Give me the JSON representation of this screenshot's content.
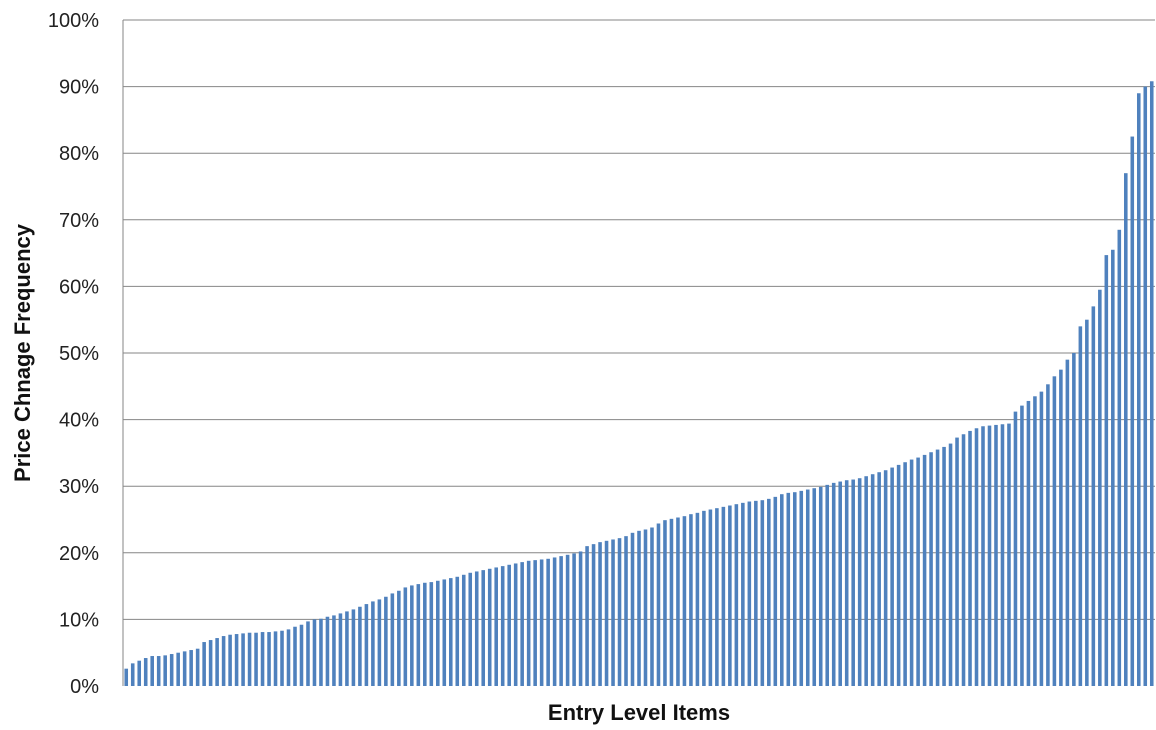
{
  "chart_data": {
    "type": "bar",
    "title": "",
    "xlabel": "Entry Level Items",
    "ylabel": "Price Chnage Frequency",
    "ylim": [
      0,
      100
    ],
    "y_unit": "%",
    "ytick_values": [
      0,
      10,
      20,
      30,
      40,
      50,
      60,
      70,
      80,
      90,
      100
    ],
    "ytick_labels": [
      "0%",
      "10%",
      "20%",
      "30%",
      "40%",
      "50%",
      "60%",
      "70%",
      "80%",
      "90%",
      "100%"
    ],
    "grid": true,
    "legend": "none",
    "bar_color": "#4f81bd",
    "values": [
      2.6,
      3.4,
      3.8,
      4.2,
      4.5,
      4.5,
      4.6,
      4.8,
      5.0,
      5.2,
      5.4,
      5.6,
      6.6,
      6.9,
      7.2,
      7.5,
      7.7,
      7.8,
      7.9,
      8.0,
      8.0,
      8.1,
      8.1,
      8.2,
      8.3,
      8.5,
      8.9,
      9.2,
      9.7,
      10.0,
      10.1,
      10.4,
      10.6,
      10.9,
      11.2,
      11.5,
      11.9,
      12.3,
      12.7,
      13.0,
      13.4,
      13.9,
      14.3,
      14.8,
      15.1,
      15.3,
      15.5,
      15.6,
      15.8,
      16.0,
      16.2,
      16.4,
      16.7,
      17.0,
      17.2,
      17.4,
      17.6,
      17.8,
      18.0,
      18.2,
      18.4,
      18.6,
      18.8,
      18.9,
      19.0,
      19.1,
      19.3,
      19.5,
      19.7,
      19.9,
      20.2,
      21.0,
      21.3,
      21.6,
      21.8,
      22.0,
      22.2,
      22.5,
      23.0,
      23.3,
      23.5,
      23.8,
      24.4,
      24.9,
      25.1,
      25.3,
      25.5,
      25.8,
      26.0,
      26.3,
      26.5,
      26.7,
      26.9,
      27.1,
      27.3,
      27.5,
      27.7,
      27.8,
      27.9,
      28.1,
      28.4,
      28.8,
      29.0,
      29.1,
      29.3,
      29.5,
      29.7,
      29.9,
      30.2,
      30.5,
      30.7,
      30.9,
      31.0,
      31.2,
      31.5,
      31.8,
      32.1,
      32.4,
      32.8,
      33.2,
      33.6,
      34.0,
      34.3,
      34.7,
      35.1,
      35.5,
      35.9,
      36.4,
      37.3,
      37.8,
      38.3,
      38.7,
      39.0,
      39.1,
      39.2,
      39.3,
      39.4,
      41.2,
      42.1,
      42.8,
      43.5,
      44.2,
      45.3,
      46.5,
      47.5,
      49.0,
      50.0,
      54.0,
      55.0,
      57.0,
      59.5,
      64.7,
      65.5,
      68.5,
      77.0,
      82.5,
      89.0,
      90.0,
      90.8
    ]
  }
}
